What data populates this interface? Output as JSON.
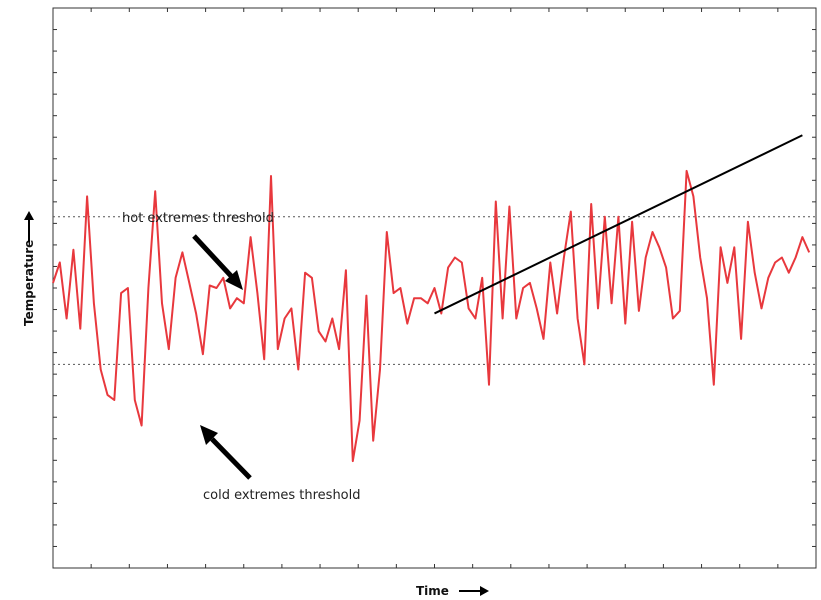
{
  "chart_data": {
    "type": "line",
    "xlabel": "Time",
    "ylabel": "Temperature",
    "xlim": [
      0,
      112
    ],
    "ylim": [
      -5.5,
      5.5
    ],
    "grid": false,
    "x": [
      0,
      1,
      2,
      3,
      4,
      5,
      6,
      7,
      8,
      9,
      10,
      11,
      12,
      13,
      14,
      15,
      16,
      17,
      18,
      19,
      20,
      21,
      22,
      23,
      24,
      25,
      26,
      27,
      28,
      29,
      30,
      31,
      32,
      33,
      34,
      35,
      36,
      37,
      38,
      39,
      40,
      41,
      42,
      43,
      44,
      45,
      46,
      47,
      48,
      49,
      50,
      51,
      52,
      53,
      54,
      55,
      56,
      57,
      58,
      59,
      60,
      61,
      62,
      63,
      64,
      65,
      66,
      67,
      68,
      69,
      70,
      71,
      72,
      73,
      74,
      75,
      76,
      77,
      78,
      79,
      80,
      81,
      82,
      83,
      84,
      85,
      86,
      87,
      88,
      89,
      90,
      91,
      92,
      93,
      94,
      95,
      96,
      97,
      98,
      99,
      100,
      101,
      102,
      103,
      104,
      105,
      106,
      107,
      108,
      109,
      110,
      111
    ],
    "series": [
      {
        "values": [
          0.1,
          0.5,
          -0.6,
          0.75,
          -0.8,
          1.8,
          -0.3,
          -1.6,
          -2.1,
          -2.2,
          -0.1,
          0.0,
          -2.2,
          -2.7,
          0.0,
          1.9,
          -0.3,
          -1.2,
          0.2,
          0.7,
          0.1,
          -0.5,
          -1.3,
          0.05,
          0.0,
          0.2,
          -0.4,
          -0.2,
          -0.3,
          1.0,
          -0.1,
          -1.4,
          2.2,
          -1.2,
          -0.6,
          -0.4,
          -1.6,
          0.3,
          0.2,
          -0.85,
          -1.05,
          -0.6,
          -1.2,
          0.35,
          -3.4,
          -2.6,
          -0.15,
          -3.0,
          -1.6,
          1.1,
          -0.1,
          0.0,
          -0.7,
          -0.2,
          -0.2,
          -0.3,
          0.0,
          -0.5,
          0.4,
          0.6,
          0.5,
          -0.4,
          -0.6,
          0.2,
          -1.9,
          1.7,
          -0.6,
          1.6,
          -0.6,
          0.0,
          0.1,
          -0.4,
          -1.0,
          0.5,
          -0.5,
          0.6,
          1.5,
          -0.6,
          -1.5,
          1.65,
          -0.4,
          1.4,
          -0.3,
          1.4,
          -0.7,
          1.3,
          -0.45,
          0.6,
          1.1,
          0.8,
          0.4,
          -0.6,
          -0.45,
          2.3,
          1.8,
          0.6,
          -0.2,
          -1.9,
          0.8,
          0.1,
          0.8,
          -1.0,
          1.3,
          0.3,
          -0.4,
          0.2,
          0.5,
          0.6,
          0.3,
          0.6,
          1.0,
          0.7
        ]
      }
    ],
    "trend_line": {
      "x": [
        56,
        110
      ],
      "y": [
        -0.5,
        3.0
      ]
    },
    "thresholds": {
      "hot": 1.4,
      "cold": -1.5
    },
    "annotations": [
      {
        "text": "hot extremes threshold",
        "arrow_to": "hot"
      },
      {
        "text": "cold extremes threshold",
        "arrow_to": "cold"
      }
    ],
    "colors": {
      "series": "#e8383d",
      "trend": "#000000",
      "threshold": "#555555"
    }
  }
}
